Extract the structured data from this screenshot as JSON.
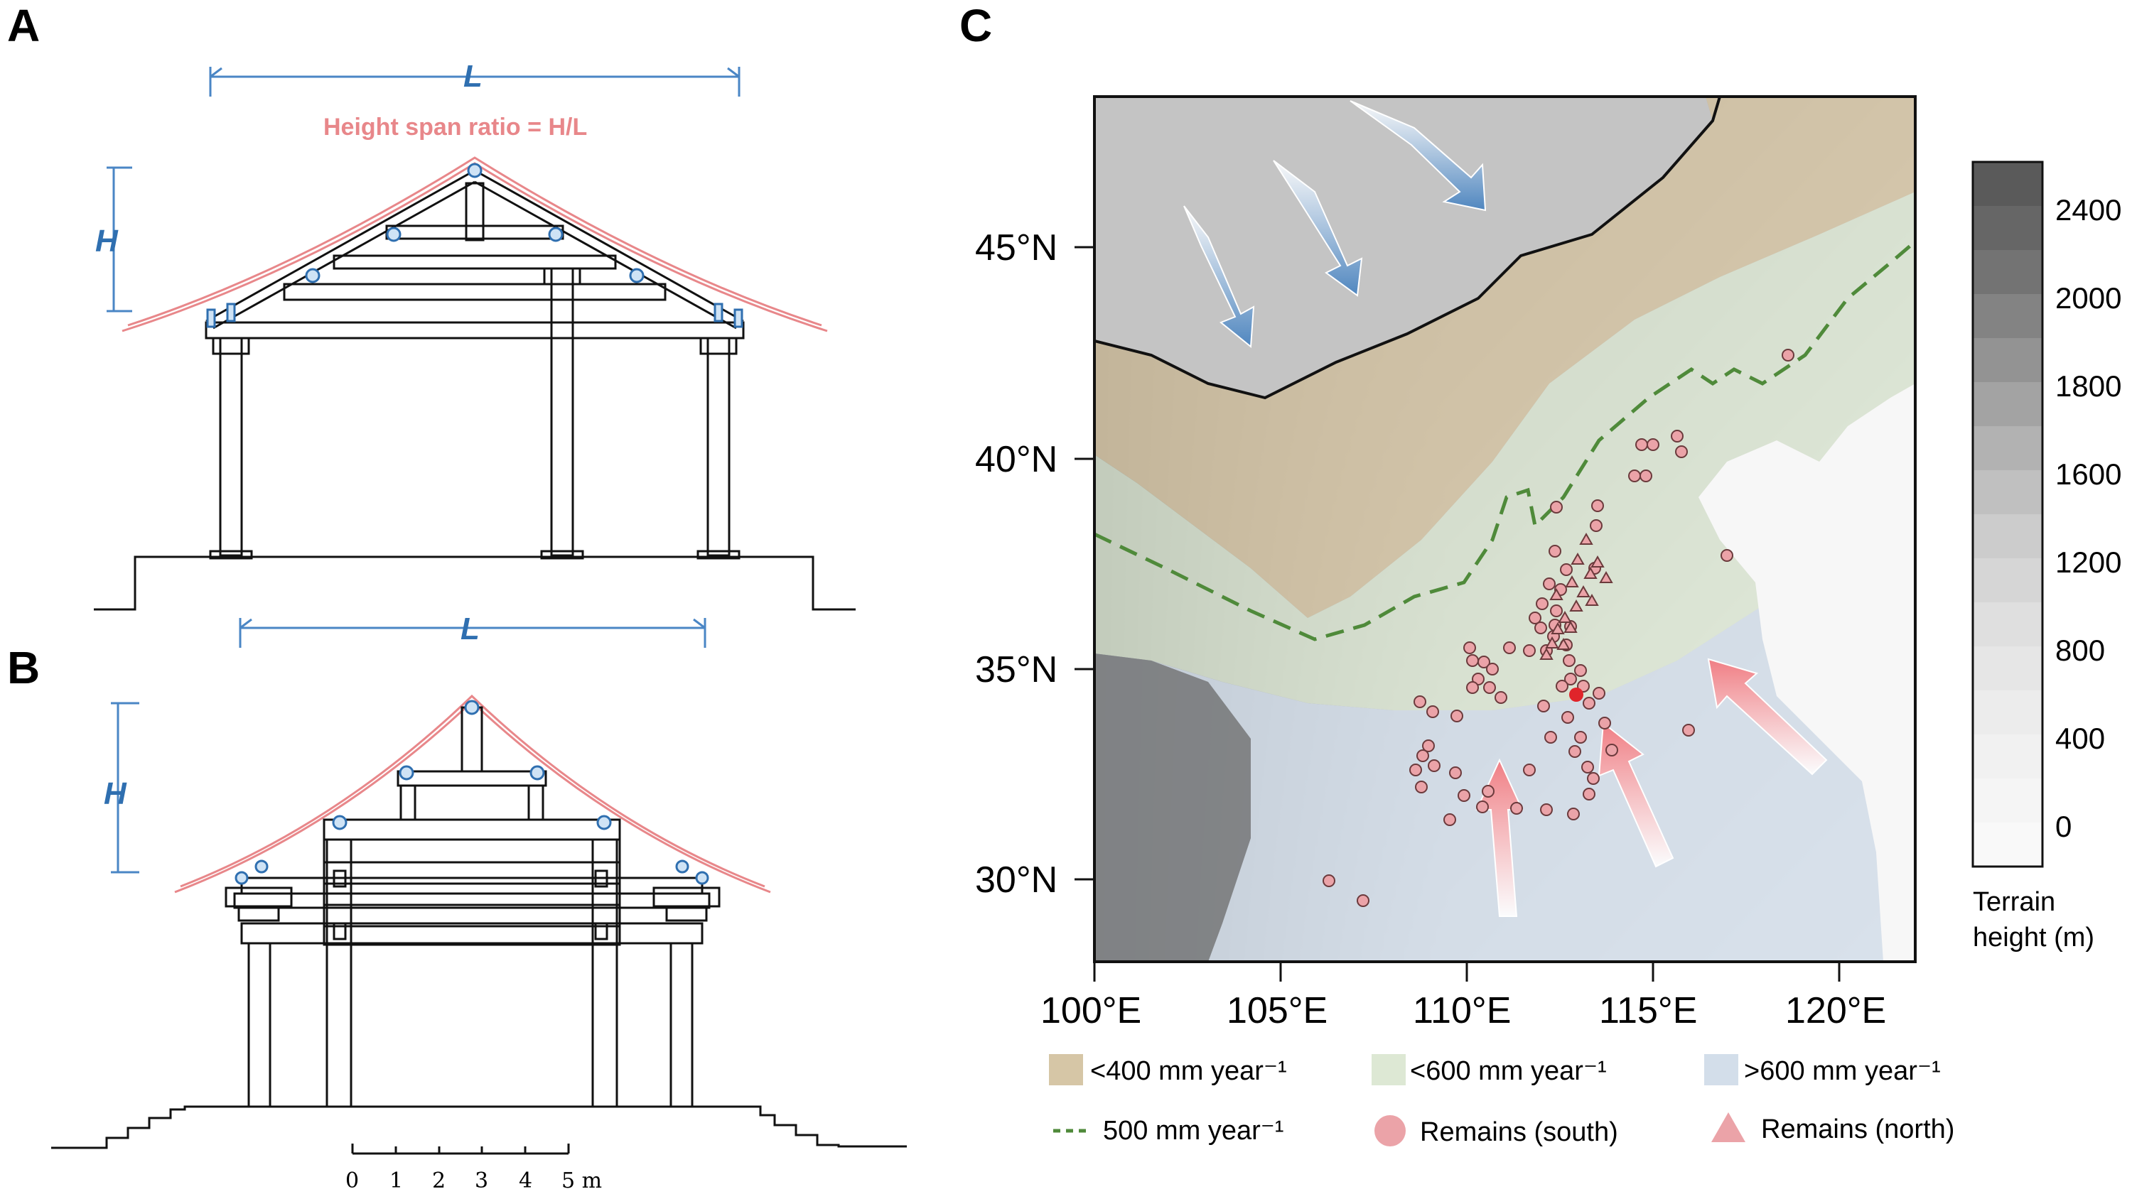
{
  "panels": {
    "A": {
      "letter": "A",
      "span_label": "L",
      "height_label": "H",
      "ratio_label": "Height span ratio = H/L"
    },
    "B": {
      "letter": "B",
      "span_label": "L",
      "height_label": "H",
      "scale_bar": {
        "ticks": [
          "0",
          "1",
          "2",
          "3",
          "4",
          "5 m"
        ]
      }
    },
    "C": {
      "letter": "C",
      "lat_ticks": [
        "45°N",
        "40°N",
        "35°N",
        "30°N"
      ],
      "lon_ticks": [
        "100°E",
        "105°E",
        "110°E",
        "115°E",
        "120°E"
      ],
      "colorbar": {
        "ticks": [
          "2400",
          "2000",
          "1800",
          "1600",
          "1200",
          "800",
          "400",
          "0"
        ],
        "title_line1": "Terrain",
        "title_line2": "height (m)"
      },
      "legend": {
        "zone_low": "<400 mm year⁻¹",
        "zone_mid": "<600 mm year⁻¹",
        "zone_high": ">600 mm year⁻¹",
        "isohyet": "500 mm year⁻¹",
        "remains_south": "Remains (south)",
        "remains_north": "Remains (north)"
      }
    }
  },
  "colors": {
    "dimension_blue": "#4a86c5",
    "roof_pink": "#e8878a",
    "arid_zone": "#d6c6a6",
    "semi_arid_zone": "#dde8d4",
    "humid_zone": "#d3deea",
    "isohyet_green": "#4f8a3a",
    "remains_fill": "#eba3a8",
    "highlight_red": "#e0242a"
  }
}
